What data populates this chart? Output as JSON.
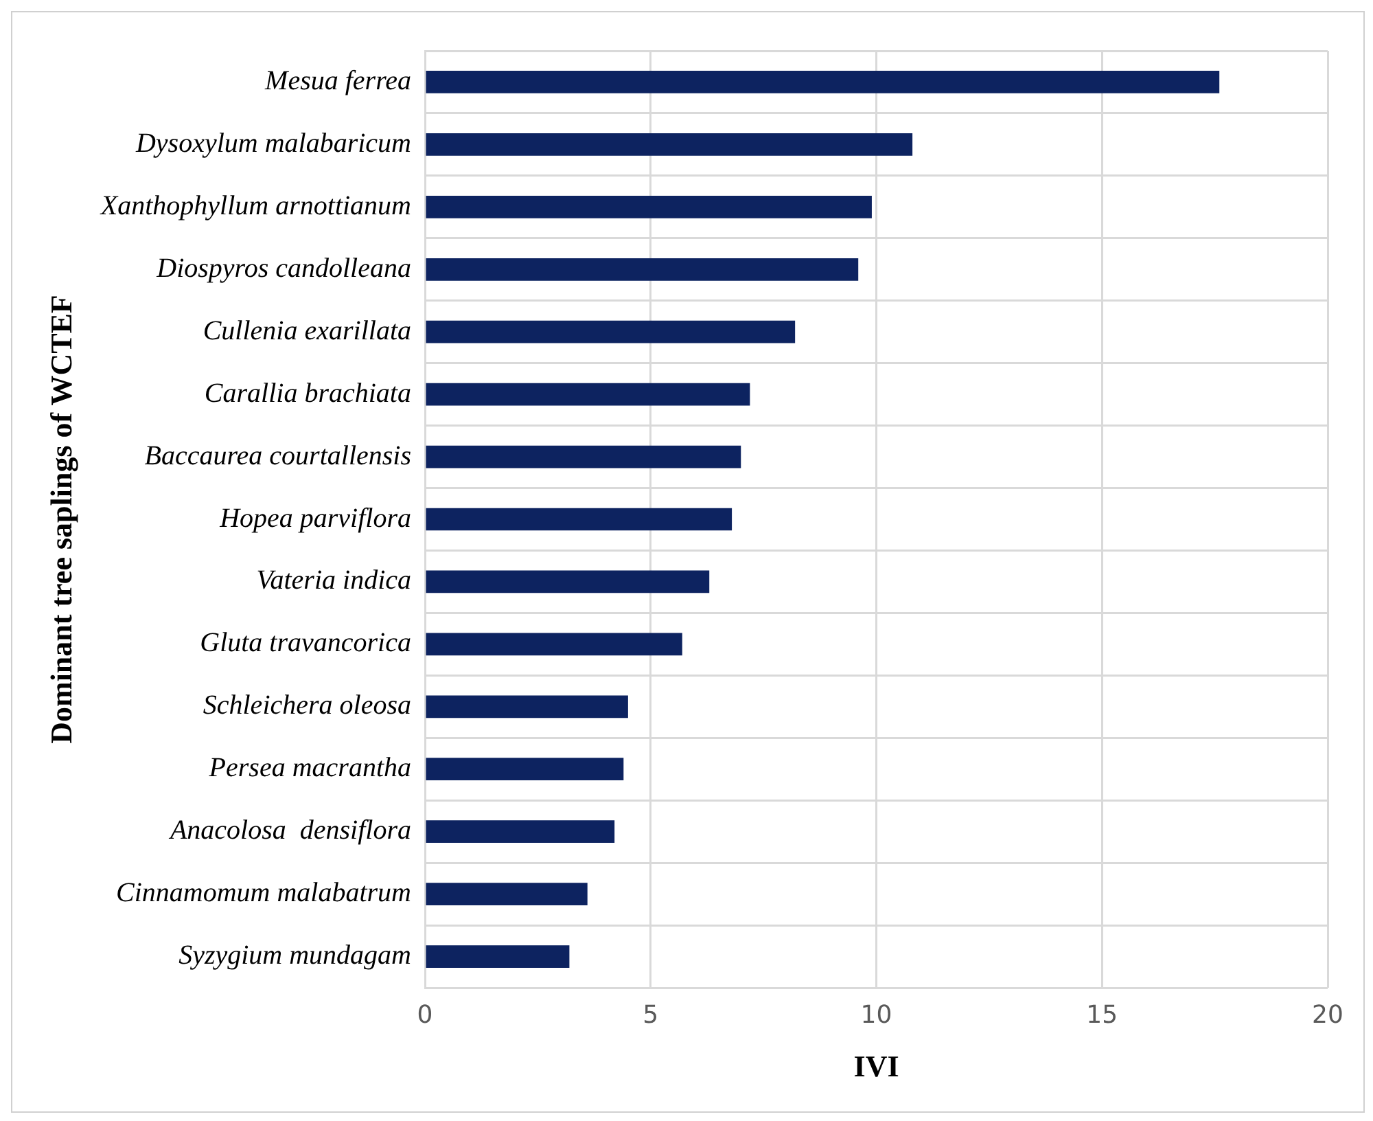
{
  "chart_data": {
    "type": "bar",
    "orientation": "horizontal",
    "xlabel": "IVI",
    "ylabel": "Dominant tree saplings of WCTEF",
    "categories": [
      "Mesua ferrea",
      "Dysoxylum malabaricum",
      "Xanthophyllum arnottianum",
      "Diospyros candolleana",
      "Cullenia exarillata",
      "Carallia brachiata",
      "Baccaurea courtallensis",
      "Hopea parviflora",
      "Vateria indica",
      "Gluta travancorica",
      "Schleichera oleosa",
      "Persea macrantha",
      "Anacolosa  densiflora",
      "Cinnamomum malabatrum",
      "Syzygium mundagam"
    ],
    "values": [
      17.6,
      10.8,
      9.9,
      9.6,
      8.2,
      7.2,
      7.0,
      6.8,
      6.3,
      5.7,
      4.5,
      4.4,
      4.2,
      3.6,
      3.2
    ],
    "color": "#0d2360",
    "xlim": [
      0,
      20
    ],
    "xticks": [
      0,
      5,
      10,
      15,
      20
    ],
    "grid": true,
    "legend": false
  }
}
